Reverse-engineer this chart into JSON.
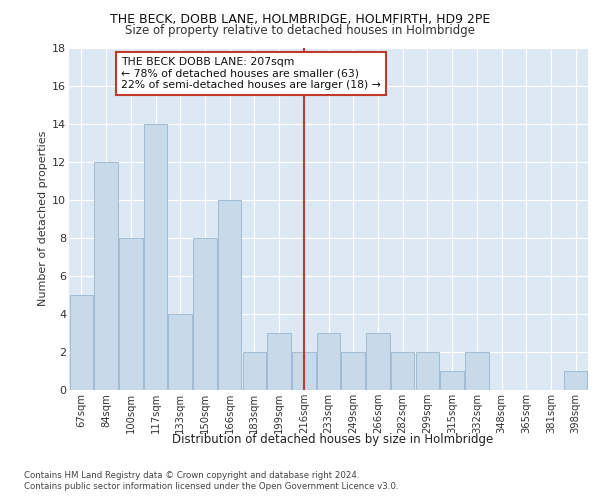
{
  "title1": "THE BECK, DOBB LANE, HOLMBRIDGE, HOLMFIRTH, HD9 2PE",
  "title2": "Size of property relative to detached houses in Holmbridge",
  "xlabel": "Distribution of detached houses by size in Holmbridge",
  "ylabel": "Number of detached properties",
  "bar_labels": [
    "67sqm",
    "84sqm",
    "100sqm",
    "117sqm",
    "133sqm",
    "150sqm",
    "166sqm",
    "183sqm",
    "199sqm",
    "216sqm",
    "233sqm",
    "249sqm",
    "266sqm",
    "282sqm",
    "299sqm",
    "315sqm",
    "332sqm",
    "348sqm",
    "365sqm",
    "381sqm",
    "398sqm"
  ],
  "bar_values": [
    5,
    12,
    8,
    14,
    4,
    8,
    10,
    2,
    3,
    2,
    3,
    2,
    3,
    2,
    2,
    1,
    2,
    0,
    0,
    0,
    1
  ],
  "bar_color": "#c8daea",
  "bar_edgecolor": "#a0bcd4",
  "vline_x": 9.0,
  "vline_color": "#c0392b",
  "annotation_text": "THE BECK DOBB LANE: 207sqm\n← 78% of detached houses are smaller (63)\n22% of semi-detached houses are larger (18) →",
  "annotation_box_edgecolor": "#c0392b",
  "annotation_box_facecolor": "#ffffff",
  "ylim": [
    0,
    18
  ],
  "yticks": [
    0,
    2,
    4,
    6,
    8,
    10,
    12,
    14,
    16,
    18
  ],
  "footer1": "Contains HM Land Registry data © Crown copyright and database right 2024.",
  "footer2": "Contains public sector information licensed under the Open Government Licence v3.0.",
  "plot_background": "#dce8f4"
}
